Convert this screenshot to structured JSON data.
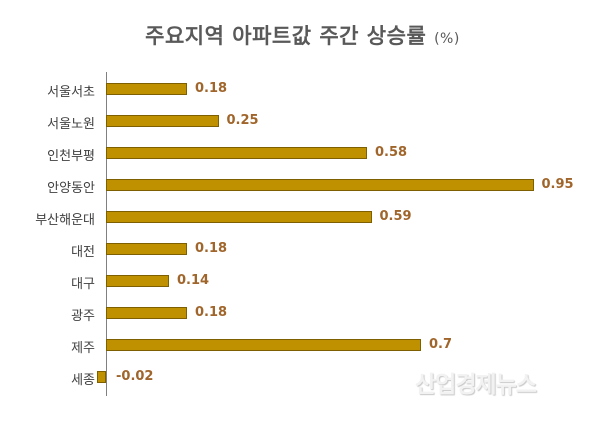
{
  "title": "주요지역 아파트값 주간 상승률",
  "title_unit": "(%)",
  "watermark": "산업경제뉴스",
  "colors": {
    "bar_fill": "#BF9000",
    "bar_border": "#7F6000",
    "label": "#A0652B",
    "axis": "#808080"
  },
  "chart_data": {
    "type": "bar",
    "orientation": "horizontal",
    "title": "주요지역 아파트값 주간 상승률 (%)",
    "xlabel": "",
    "ylabel": "",
    "categories": [
      "서울서초",
      "서울노원",
      "인천부평",
      "안양동안",
      "부산해운대",
      "대전",
      "대구",
      "광주",
      "제주",
      "세종"
    ],
    "values": [
      0.18,
      0.25,
      0.58,
      0.95,
      0.59,
      0.18,
      0.14,
      0.18,
      0.7,
      -0.02
    ],
    "value_labels": [
      "0.18",
      "0.25",
      "0.58",
      "0.95",
      "0.59",
      "0.18",
      "0.14",
      "0.18",
      "0.7",
      "-0.02"
    ],
    "grid": false,
    "legend": null,
    "xlim": [
      -0.02,
      1.0
    ]
  }
}
